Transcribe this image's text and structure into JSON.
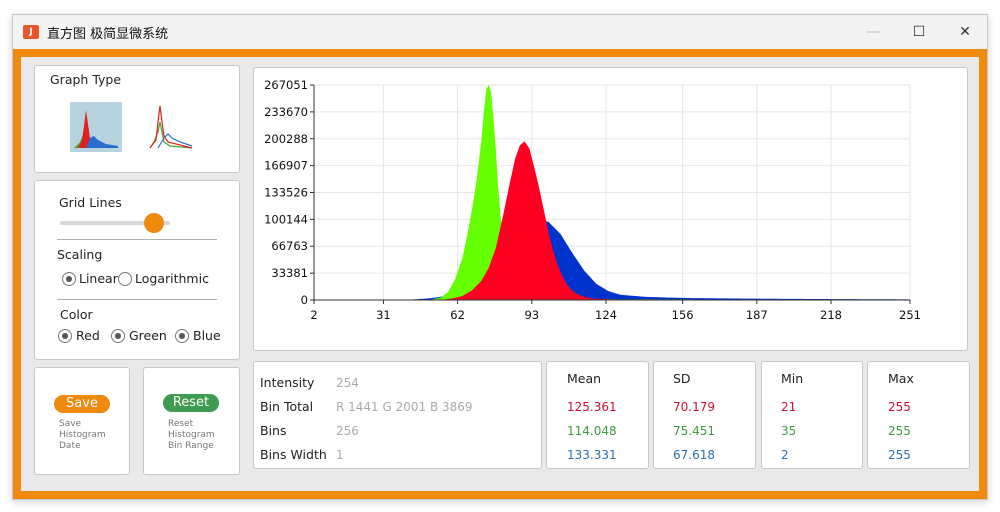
{
  "window": {
    "icon_letter": "J",
    "title": "直方图 极简显微系统",
    "minimize_glyph": "—",
    "maximize_glyph": "☐",
    "close_glyph": "✕"
  },
  "graph_type": {
    "title": "Graph Type",
    "options": [
      "filled-histogram-icon",
      "line-histogram-icon"
    ],
    "selected": 0
  },
  "grid": {
    "title": "Grid Lines",
    "slider_value": 0.85
  },
  "scaling": {
    "title": "Scaling",
    "linear_label": "Linear",
    "log_label": "Logarithmic",
    "selected": "Linear"
  },
  "color": {
    "title": "Color",
    "red_label": "Red",
    "green_label": "Green",
    "blue_label": "Blue",
    "red_checked": true,
    "green_checked": true,
    "blue_checked": true
  },
  "save": {
    "label": "Save",
    "desc1": "Save",
    "desc2": "Histogram",
    "desc3": "Date",
    "color": "#f08a0e"
  },
  "reset": {
    "label": "Reset",
    "desc1": "Reset",
    "desc2": "Histogram",
    "desc3": "Bin Range",
    "color": "#3f9a52"
  },
  "info": {
    "intensity_label": "Intensity",
    "intensity_value": "254",
    "bin_total_label": "Bin Total",
    "bin_total_value": "R 1441 G 2001 B 3869",
    "bins_label": "Bins",
    "bins_value": "256",
    "bins_width_label": "Bins Width",
    "bins_width_value": "1"
  },
  "stats": {
    "mean": {
      "title": "Mean",
      "r": "125.361",
      "g": "114.048",
      "b": "133.331"
    },
    "sd": {
      "title": "SD",
      "r": "70.179",
      "g": "75.451",
      "b": "67.618"
    },
    "min": {
      "title": "Min",
      "r": "21",
      "g": "35",
      "b": "2"
    },
    "max": {
      "title": "Max",
      "r": "255",
      "g": "255",
      "b": "255"
    },
    "colors": {
      "r": "#c8102e",
      "g": "#3f9a3f",
      "b": "#2a6fb0"
    }
  },
  "chart_data": {
    "type": "area",
    "x_ticks": [
      "2",
      "31",
      "62",
      "93",
      "124",
      "156",
      "187",
      "218",
      "251"
    ],
    "y_ticks": [
      "0",
      "33381",
      "66763",
      "100144",
      "133526",
      "166907",
      "200288",
      "233670",
      "267051"
    ],
    "xlim": [
      2,
      251
    ],
    "ylim": [
      0,
      267051
    ],
    "grid": true,
    "series": [
      {
        "name": "Blue",
        "color": "#0033cc",
        "x": [
          40,
          50,
          55,
          60,
          65,
          70,
          75,
          80,
          85,
          90,
          95,
          100,
          105,
          110,
          115,
          120,
          125,
          130,
          140,
          150,
          160,
          180,
          200,
          230,
          251
        ],
        "y": [
          0,
          2000,
          4000,
          7000,
          12000,
          20000,
          30000,
          45000,
          62000,
          80000,
          100000,
          97000,
          82000,
          58000,
          36000,
          20000,
          11000,
          6500,
          4000,
          3000,
          2400,
          1800,
          1400,
          1000,
          800
        ]
      },
      {
        "name": "Green",
        "color": "#66ff00",
        "x": [
          50,
          55,
          58,
          61,
          64,
          66,
          68,
          70,
          72,
          73,
          74,
          75,
          76,
          77,
          78,
          79,
          80,
          82,
          84,
          86,
          88,
          90,
          92,
          95,
          98,
          100,
          110,
          130,
          251
        ],
        "y": [
          0,
          3000,
          10000,
          26000,
          52000,
          80000,
          112000,
          150000,
          200000,
          235000,
          262000,
          267051,
          258000,
          225000,
          185000,
          138000,
          102000,
          60000,
          40000,
          30000,
          24000,
          20000,
          16000,
          11000,
          6000,
          4000,
          1500,
          800,
          400
        ]
      },
      {
        "name": "Red",
        "color": "#ff0022",
        "x": [
          55,
          60,
          64,
          68,
          72,
          75,
          78,
          81,
          84,
          86,
          88,
          90,
          92,
          94,
          96,
          98,
          100,
          102,
          104,
          106,
          108,
          110,
          113,
          116,
          120,
          125,
          130,
          140,
          150,
          251
        ],
        "y": [
          0,
          2000,
          5000,
          12000,
          24000,
          40000,
          65000,
          105000,
          148000,
          175000,
          192000,
          197000,
          188000,
          165000,
          140000,
          112000,
          84000,
          60000,
          42000,
          28000,
          18000,
          11000,
          6000,
          3000,
          1500,
          1000,
          600,
          400,
          200,
          100
        ]
      }
    ]
  }
}
